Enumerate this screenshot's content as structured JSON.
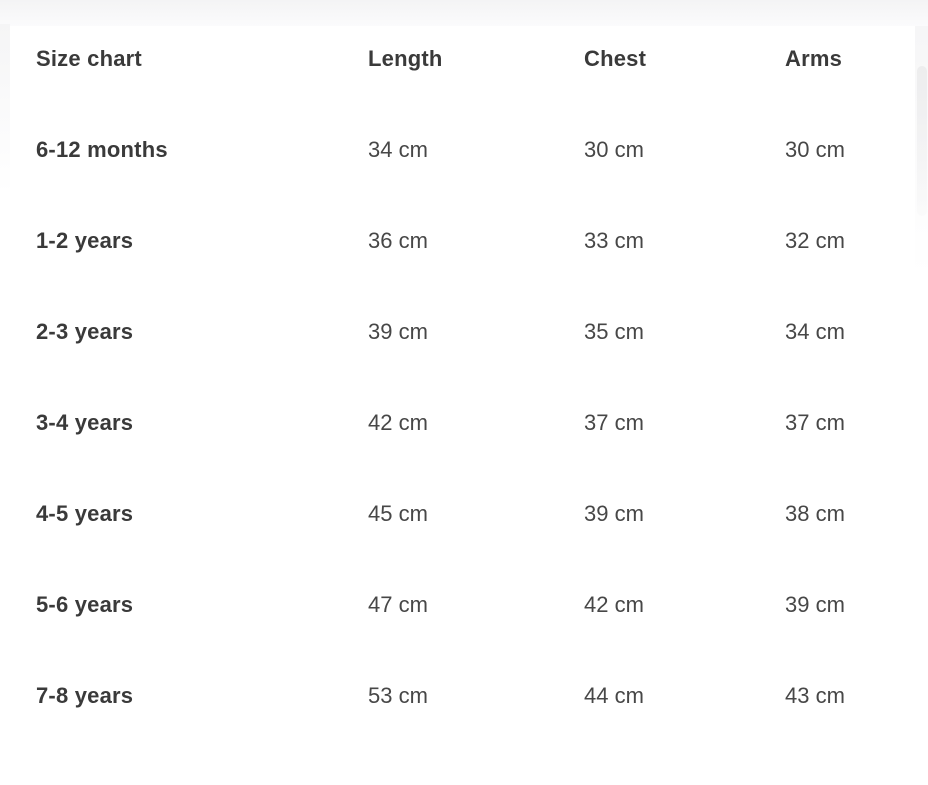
{
  "page": {
    "background_color": "#ffffff",
    "top_band_color": "#f4f4f5",
    "text_color_bold": "#3a3a3a",
    "text_color_regular": "#474747"
  },
  "table": {
    "headers": {
      "size": "Size chart",
      "length": "Length",
      "chest": "Chest",
      "arms": "Arms"
    },
    "rows": [
      {
        "size": "6-12 months",
        "length": "34 cm",
        "chest": "30 cm",
        "arms": "30 cm"
      },
      {
        "size": "1-2 years",
        "length": "36 cm",
        "chest": "33 cm",
        "arms": "32 cm"
      },
      {
        "size": "2-3 years",
        "length": "39 cm",
        "chest": "35 cm",
        "arms": "34 cm"
      },
      {
        "size": "3-4 years",
        "length": "42 cm",
        "chest": "37 cm",
        "arms": "37 cm"
      },
      {
        "size": "4-5 years",
        "length": "45 cm",
        "chest": "39 cm",
        "arms": "38 cm"
      },
      {
        "size": "5-6 years",
        "length": "47 cm",
        "chest": "42 cm",
        "arms": "39 cm"
      },
      {
        "size": "7-8 years",
        "length": "53 cm",
        "chest": "44 cm",
        "arms": "43 cm"
      }
    ]
  }
}
